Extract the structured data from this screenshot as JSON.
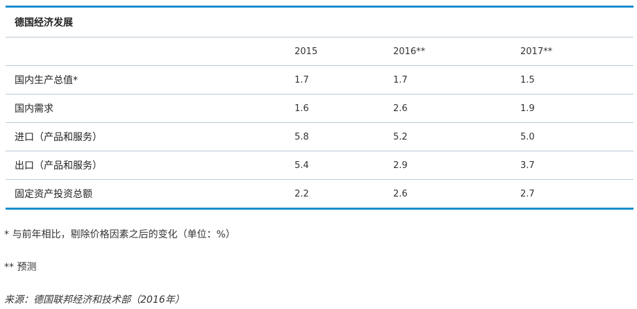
{
  "table": {
    "title": "德国经济发展",
    "columns": [
      "2015",
      "2016**",
      "2017**"
    ],
    "rows": [
      {
        "label": "国内生产总值*",
        "values": [
          "1.7",
          "1.7",
          "1.5"
        ]
      },
      {
        "label": "国内需求",
        "values": [
          "1.6",
          "2.6",
          "1.9"
        ]
      },
      {
        "label": "进口（产品和服务）",
        "values": [
          "5.8",
          "5.2",
          "5.0"
        ]
      },
      {
        "label": "出口（产品和服务）",
        "values": [
          "5.4",
          "2.9",
          "3.7"
        ]
      },
      {
        "label": "固定资产投资总额",
        "values": [
          "2.2",
          "2.6",
          "2.7"
        ]
      }
    ]
  },
  "notes": {
    "note1": "* 与前年相比，剔除价格因素之后的变化（单位：%）",
    "note2": "** 预测",
    "source": "来源：德国联邦经济和技术部（2016年）"
  }
}
